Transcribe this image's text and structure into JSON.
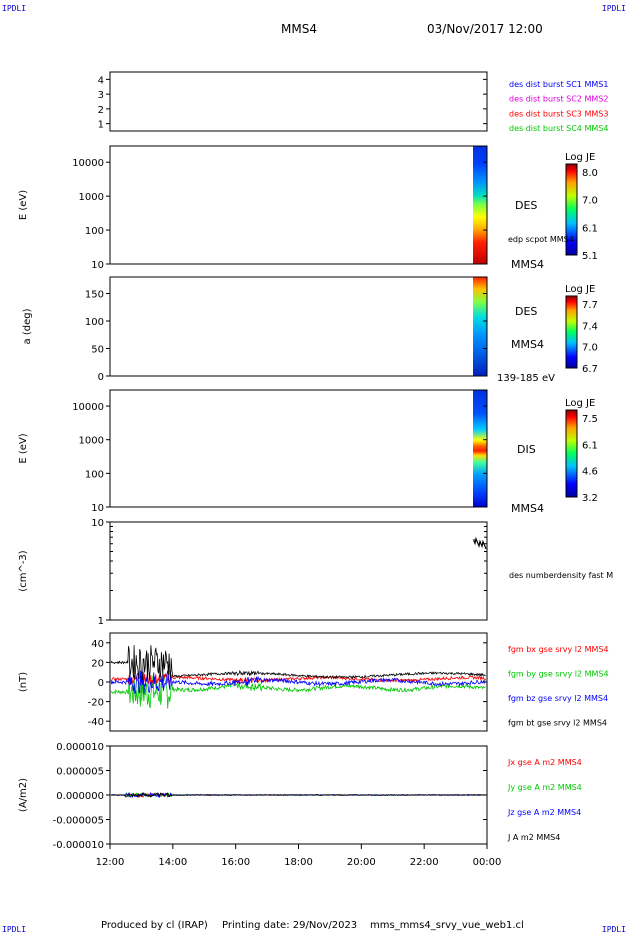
{
  "header": {
    "corner_label": "IPDLI",
    "spacecraft": "MMS4",
    "datetime": "03/Nov/2017 12:00"
  },
  "footer": {
    "produced_by": "Produced by cl (IRAP)",
    "printing_date": "Printing date: 29/Nov/2023",
    "filename": "mms_mms4_srvy_vue_web1.cl"
  },
  "colors": {
    "blue": "#0000ff",
    "magenta": "#e000e0",
    "red": "#ff0000",
    "green": "#00c800",
    "black": "#000000"
  },
  "chart_data": [
    {
      "type": "line",
      "panel": "burst-availability",
      "y_ticks": [
        "4",
        "3",
        "2",
        "1"
      ],
      "ylim": [
        0.5,
        4.5
      ],
      "legend": [
        {
          "name": "des dist burst SC1 MMS1",
          "color": "#0000ff"
        },
        {
          "name": "des dist burst SC2 MMS2",
          "color": "#e000e0"
        },
        {
          "name": "des dist burst SC3 MMS3",
          "color": "#ff0000"
        },
        {
          "name": "des dist burst SC4 MMS4",
          "color": "#00c800"
        }
      ]
    },
    {
      "type": "heatmap",
      "panel": "des-energy",
      "ylabel": "E (eV)",
      "y_scale": "log",
      "ylim": [
        10,
        30000
      ],
      "y_ticks": [
        "10000",
        "1000",
        "100",
        "10"
      ],
      "side_label": "DES",
      "overlay_label": "edp scpot MMS4",
      "sc_label": "MMS4",
      "colorbar": {
        "title": "Log JE",
        "ticks": [
          "8.0",
          "7.0",
          "6.1",
          "5.1"
        ]
      }
    },
    {
      "type": "heatmap",
      "panel": "des-pitch-angle",
      "ylabel": "a (deg)",
      "ylim": [
        0,
        180
      ],
      "y_ticks": [
        "150",
        "100",
        "50",
        "0"
      ],
      "side_label": "DES",
      "sc_label": "MMS4",
      "energy_range": "139-185 eV",
      "colorbar": {
        "title": "Log JE",
        "ticks": [
          "7.7",
          "7.4",
          "7.0",
          "6.7"
        ]
      }
    },
    {
      "type": "heatmap",
      "panel": "dis-energy",
      "ylabel": "E (eV)",
      "y_scale": "log",
      "ylim": [
        10,
        30000
      ],
      "y_ticks": [
        "10000",
        "1000",
        "100",
        "10"
      ],
      "side_label": "DIS",
      "sc_label": "MMS4",
      "colorbar": {
        "title": "Log JE",
        "ticks": [
          "7.5",
          "6.1",
          "4.6",
          "3.2"
        ]
      }
    },
    {
      "type": "line",
      "panel": "density",
      "ylabel": "(cm^-3)",
      "y_scale": "log",
      "ylim": [
        1,
        10
      ],
      "y_ticks": [
        "10",
        "1"
      ],
      "legend": [
        {
          "name": "des numberdensity fast M",
          "color": "#000000"
        }
      ]
    },
    {
      "type": "line",
      "panel": "magnetic-field",
      "ylabel": "(nT)",
      "ylim": [
        -50,
        50
      ],
      "y_ticks": [
        "40",
        "20",
        "0",
        "-20",
        "-40"
      ],
      "legend": [
        {
          "name": "fgm bx gse srvy l2 MMS4",
          "color": "#ff0000"
        },
        {
          "name": "fgm by gse srvy l2 MMS4",
          "color": "#00c800"
        },
        {
          "name": "fgm bz gse srvy l2 MMS4",
          "color": "#0000ff"
        },
        {
          "name": "fgm bt gse srvy l2 MMS4",
          "color": "#000000"
        }
      ]
    },
    {
      "type": "line",
      "panel": "current-density",
      "ylabel": "(A/m2)",
      "ylim": [
        -1e-05,
        1e-05
      ],
      "y_ticks": [
        "0.000010",
        "0.000005",
        "0.000000",
        "-0.000005",
        "-0.000010"
      ],
      "legend": [
        {
          "name": "Jx gse A m2 MMS4",
          "color": "#ff0000"
        },
        {
          "name": "Jy gse A m2 MMS4",
          "color": "#00c800"
        },
        {
          "name": "Jz gse A m2 MMS4",
          "color": "#0000ff"
        },
        {
          "name": "J A m2 MMS4",
          "color": "#000000"
        }
      ]
    }
  ],
  "x_axis": {
    "ticks": [
      "12:00",
      "14:00",
      "16:00",
      "18:00",
      "20:00",
      "22:00",
      "00:00"
    ]
  }
}
